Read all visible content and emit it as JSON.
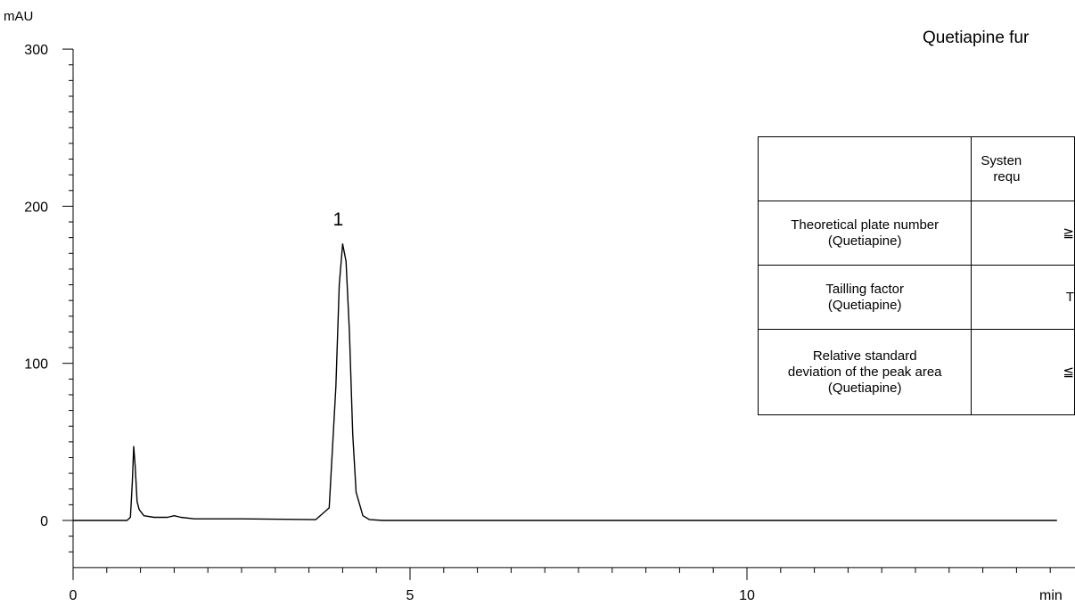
{
  "chart_data": {
    "type": "line",
    "title": "",
    "xlabel": "min",
    "ylabel": "mAU",
    "xlim": [
      0,
      14.6
    ],
    "ylim": [
      -30,
      300
    ],
    "x_ticks": [
      0,
      5,
      10
    ],
    "y_ticks": [
      0,
      100,
      200,
      300
    ],
    "grid": false,
    "series": [
      {
        "x": [
          0,
          0.8,
          0.85,
          0.88,
          0.9,
          0.92,
          0.95,
          0.98,
          1.05,
          1.2,
          1.4,
          1.5,
          1.6,
          1.8,
          2.5,
          3.6,
          3.8,
          3.9,
          3.95,
          4.0,
          4.05,
          4.1,
          4.15,
          4.2,
          4.3,
          4.4,
          4.6,
          14.6
        ],
        "y": [
          0,
          0,
          2,
          25,
          47,
          35,
          12,
          7,
          3,
          2,
          2,
          3,
          2,
          1,
          1,
          0.5,
          8,
          85,
          150,
          176,
          165,
          120,
          55,
          18,
          3,
          0.5,
          0,
          0
        ]
      }
    ],
    "annotations": [
      {
        "text": "1",
        "x": 4.0,
        "y": 190
      }
    ]
  },
  "sst": {
    "title": "Quetiapine fur",
    "header": {
      "item": "",
      "requirement_lines": [
        "Systen",
        "requ"
      ]
    },
    "rows": [
      {
        "item_lines": [
          "Theoretical plate number",
          "(Quetiapine)"
        ],
        "requirement": "≧"
      },
      {
        "item_lines": [
          "Tailling factor",
          "(Quetiapine)"
        ],
        "requirement": "T"
      },
      {
        "item_lines": [
          "Relative standard",
          "deviation of the peak area",
          "(Quetiapine)"
        ],
        "requirement": "≦"
      }
    ]
  }
}
